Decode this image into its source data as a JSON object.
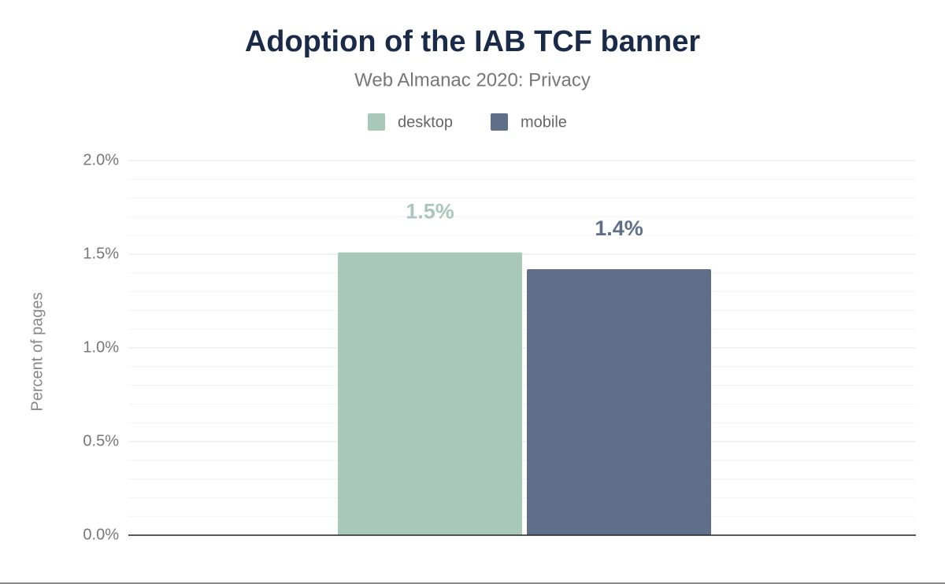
{
  "chart_data": {
    "type": "bar",
    "title": "Adoption of the IAB TCF banner",
    "subtitle": "Web Almanac 2020: Privacy",
    "y_label": "Percent of pages",
    "categories": [
      null
    ],
    "series": [
      {
        "name": "desktop",
        "color": "#a8c9b9",
        "values": [
          1.51
        ],
        "value_labels": [
          "1.5%"
        ]
      },
      {
        "name": "mobile",
        "color": "#5f6f8a",
        "values": [
          1.42
        ],
        "value_labels": [
          "1.4%"
        ]
      }
    ],
    "ylim": [
      0,
      2
    ],
    "yticks": [
      {
        "value": 0,
        "label": "0.0%"
      },
      {
        "value": 0.5,
        "label": "0.5%"
      },
      {
        "value": 1,
        "label": "1.0%"
      },
      {
        "value": 1.5,
        "label": "1.5%"
      },
      {
        "value": 2,
        "label": "2.0%"
      }
    ],
    "grid": true,
    "minor_grid": true,
    "legend": "top"
  }
}
